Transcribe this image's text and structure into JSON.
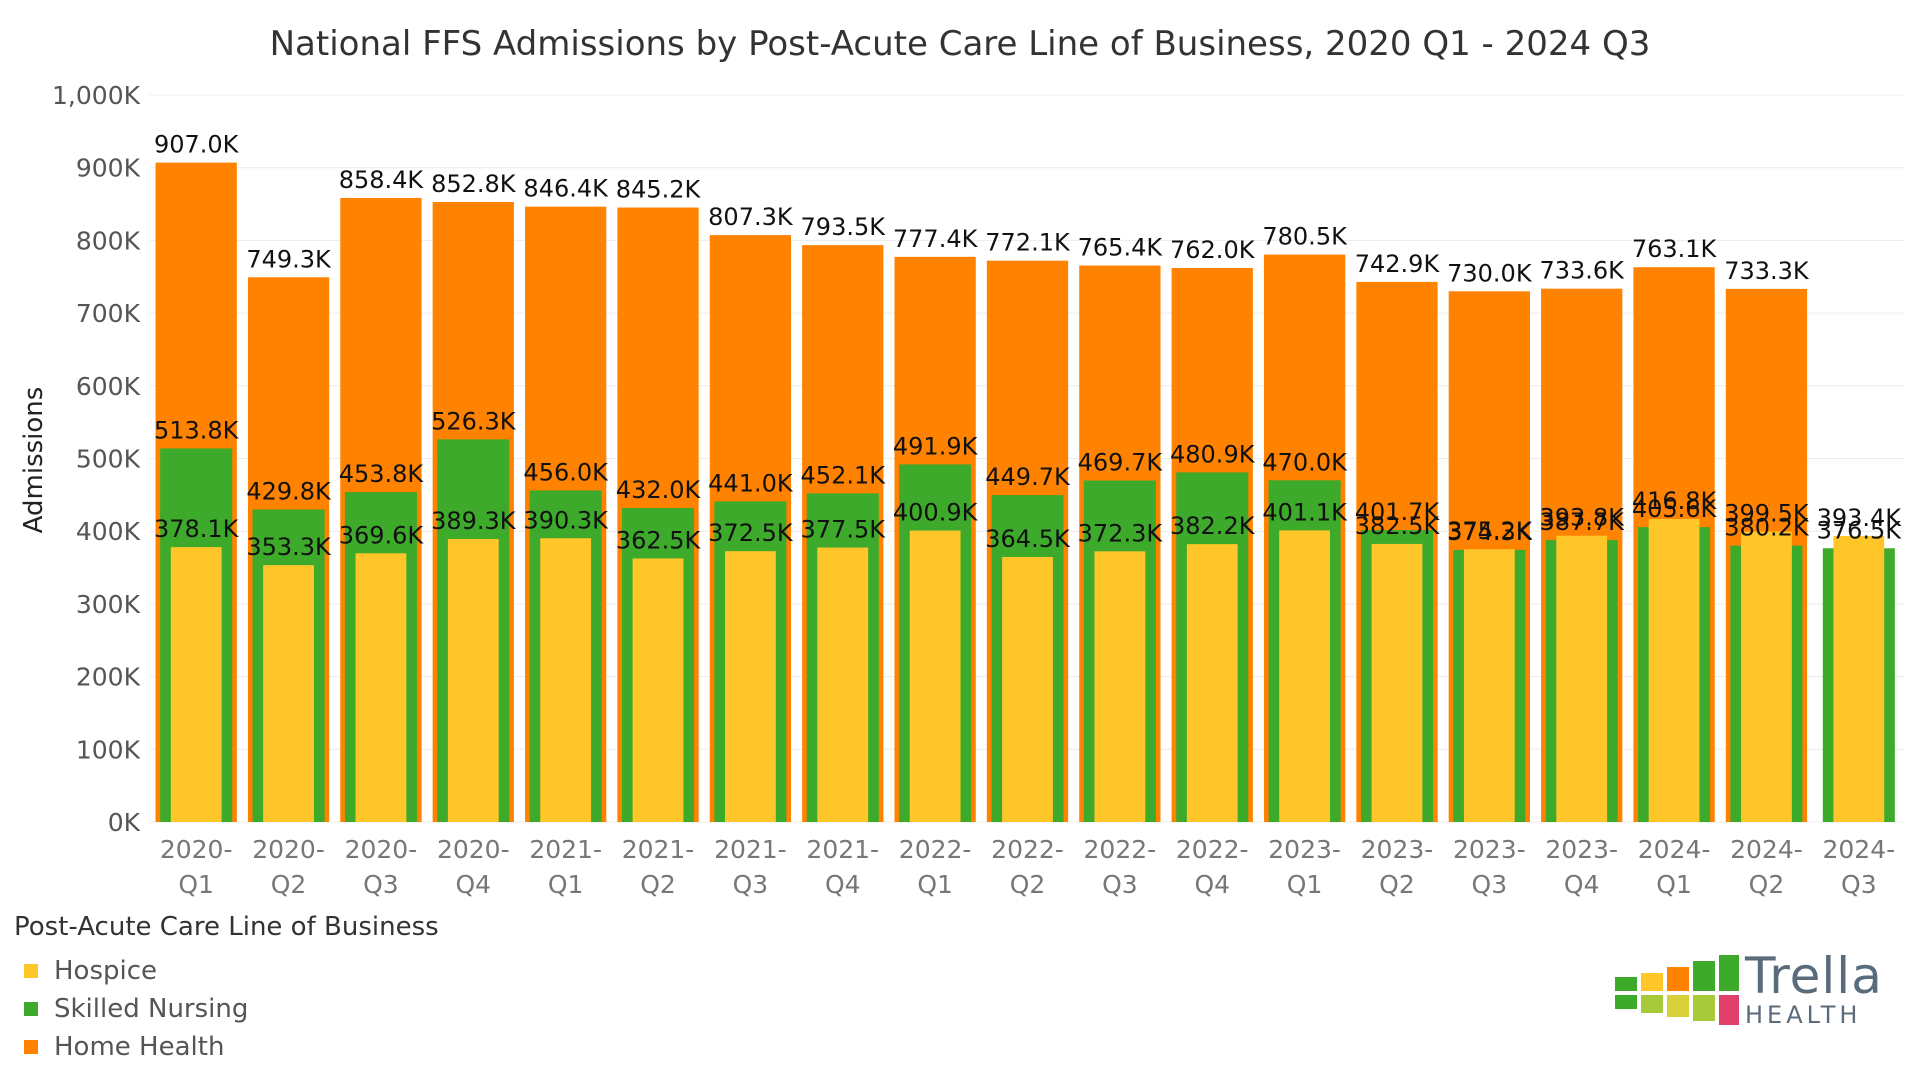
{
  "chart_data": {
    "type": "bar",
    "title": "National FFS Admissions by Post-Acute Care Line of Business, 2020 Q1 - 2024 Q3",
    "ylabel": "Admissions",
    "xlabel": "",
    "ylim": [
      0,
      1000
    ],
    "y_ticks": [
      "0K",
      "100K",
      "200K",
      "300K",
      "400K",
      "500K",
      "600K",
      "700K",
      "800K",
      "900K",
      "1,000K"
    ],
    "categories": [
      [
        "2020-",
        "Q1"
      ],
      [
        "2020-",
        "Q2"
      ],
      [
        "2020-",
        "Q3"
      ],
      [
        "2020-",
        "Q4"
      ],
      [
        "2021-",
        "Q1"
      ],
      [
        "2021-",
        "Q2"
      ],
      [
        "2021-",
        "Q3"
      ],
      [
        "2021-",
        "Q4"
      ],
      [
        "2022-",
        "Q1"
      ],
      [
        "2022-",
        "Q2"
      ],
      [
        "2022-",
        "Q3"
      ],
      [
        "2022-",
        "Q4"
      ],
      [
        "2023-",
        "Q1"
      ],
      [
        "2023-",
        "Q2"
      ],
      [
        "2023-",
        "Q3"
      ],
      [
        "2023-",
        "Q4"
      ],
      [
        "2024-",
        "Q1"
      ],
      [
        "2024-",
        "Q2"
      ],
      [
        "2024-",
        "Q3"
      ]
    ],
    "series": [
      {
        "name": "Home Health",
        "color": "#FF8200",
        "values": [
          907.0,
          749.3,
          858.4,
          852.8,
          846.4,
          845.2,
          807.3,
          793.5,
          777.4,
          772.1,
          765.4,
          762.0,
          780.5,
          742.9,
          730.0,
          733.6,
          763.1,
          733.3,
          null
        ],
        "labels": [
          "907.0K",
          "749.3K",
          "858.4K",
          "852.8K",
          "846.4K",
          "845.2K",
          "807.3K",
          "793.5K",
          "777.4K",
          "772.1K",
          "765.4K",
          "762.0K",
          "780.5K",
          "742.9K",
          "730.0K",
          "733.6K",
          "763.1K",
          "733.3K",
          ""
        ]
      },
      {
        "name": "Skilled Nursing",
        "color": "#3DAA2B",
        "values": [
          513.8,
          429.8,
          453.8,
          526.3,
          456.0,
          432.0,
          441.0,
          452.1,
          491.9,
          449.7,
          469.7,
          480.9,
          470.0,
          401.7,
          374.3,
          387.7,
          405.6,
          380.2,
          376.5
        ],
        "labels": [
          "513.8K",
          "429.8K",
          "453.8K",
          "526.3K",
          "456.0K",
          "432.0K",
          "441.0K",
          "452.1K",
          "491.9K",
          "449.7K",
          "469.7K",
          "480.9K",
          "470.0K",
          "401.7K",
          "374.3K",
          "387.7K",
          "405.6K",
          "380.2K",
          "376.5K"
        ]
      },
      {
        "name": "Hospice",
        "color": "#FFC629",
        "values": [
          378.1,
          353.3,
          369.6,
          389.3,
          390.3,
          362.5,
          372.5,
          377.5,
          400.9,
          364.5,
          372.3,
          382.2,
          401.1,
          382.5,
          375.2,
          393.8,
          416.8,
          399.5,
          393.4
        ],
        "labels": [
          "378.1K",
          "353.3K",
          "369.6K",
          "389.3K",
          "390.3K",
          "362.5K",
          "372.5K",
          "377.5K",
          "400.9K",
          "364.5K",
          "372.3K",
          "382.2K",
          "401.1K",
          "382.5K",
          "375.2K",
          "393.8K",
          "416.8K",
          "399.5K",
          "393.4K"
        ]
      }
    ],
    "legend_title": "Post-Acute Care Line of Business",
    "legend_entries": [
      "Hospice",
      "Skilled Nursing",
      "Home Health"
    ],
    "legend_colors": [
      "#FFC629",
      "#3DAA2B",
      "#FF8200"
    ],
    "grid": true
  },
  "logo": {
    "name": "Trella",
    "sub": "HEALTH",
    "tile_colors": [
      "#3DAA2B",
      "#FFC629",
      "#FF8200",
      "#A8C93A",
      "#D8D13A",
      "#E0406A"
    ]
  }
}
